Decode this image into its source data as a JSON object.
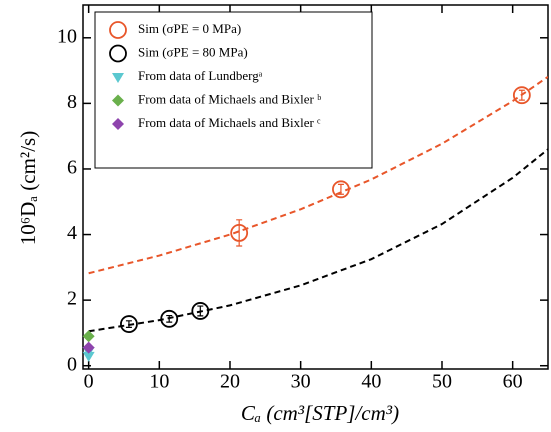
{
  "chart_data": {
    "type": "scatter",
    "xlabel": "Cₐ (cm³[STP]/cm³)",
    "ylabel": "10⁶Dₐ (cm²/s)",
    "xlim": [
      -0.8,
      65
    ],
    "ylim": [
      -0.1,
      11
    ],
    "xticks": [
      0,
      10,
      20,
      30,
      40,
      50,
      60
    ],
    "yticks": [
      0,
      2,
      4,
      6,
      8,
      10
    ],
    "legend": "upper left",
    "series": [
      {
        "name": "Sim (σPE = 0 MPa)",
        "color": "#e8562a",
        "marker": "open-circle",
        "x": [
          21.3,
          35.7,
          61.3
        ],
        "values": [
          4.05,
          5.38,
          8.25
        ],
        "errors": [
          0.4,
          0.15,
          0.15
        ]
      },
      {
        "name": "Sim (σPE = 80 MPa)",
        "color": "#000000",
        "marker": "open-circle",
        "x": [
          5.7,
          11.4,
          15.8
        ],
        "values": [
          1.27,
          1.43,
          1.67
        ],
        "errors": [
          0.1,
          0.1,
          0.15
        ]
      },
      {
        "name": "From data of Lundbergᵃ",
        "color": "#5bc8d0",
        "marker": "triangle-down",
        "x": [
          0,
          0
        ],
        "values": [
          0.3,
          0.45
        ]
      },
      {
        "name": "From data of Michaels and Bixler ᵇ",
        "color": "#6ab04c",
        "marker": "diamond",
        "x": [
          0
        ],
        "values": [
          0.9
        ]
      },
      {
        "name": "From data of Michaels and Bixler ᶜ",
        "color": "#8e44ad",
        "marker": "diamond",
        "x": [
          0
        ],
        "values": [
          0.55
        ]
      }
    ],
    "fits": [
      {
        "color": "#e8562a",
        "x": [
          0,
          10,
          20,
          30,
          40,
          50,
          60,
          65
        ],
        "values": [
          2.82,
          3.36,
          4.0,
          4.77,
          5.68,
          6.77,
          8.07,
          8.81
        ]
      },
      {
        "color": "#000000",
        "x": [
          0,
          10,
          20,
          30,
          40,
          50,
          60,
          65
        ],
        "values": [
          1.05,
          1.39,
          1.84,
          2.45,
          3.25,
          4.32,
          5.73,
          6.6
        ]
      }
    ]
  }
}
